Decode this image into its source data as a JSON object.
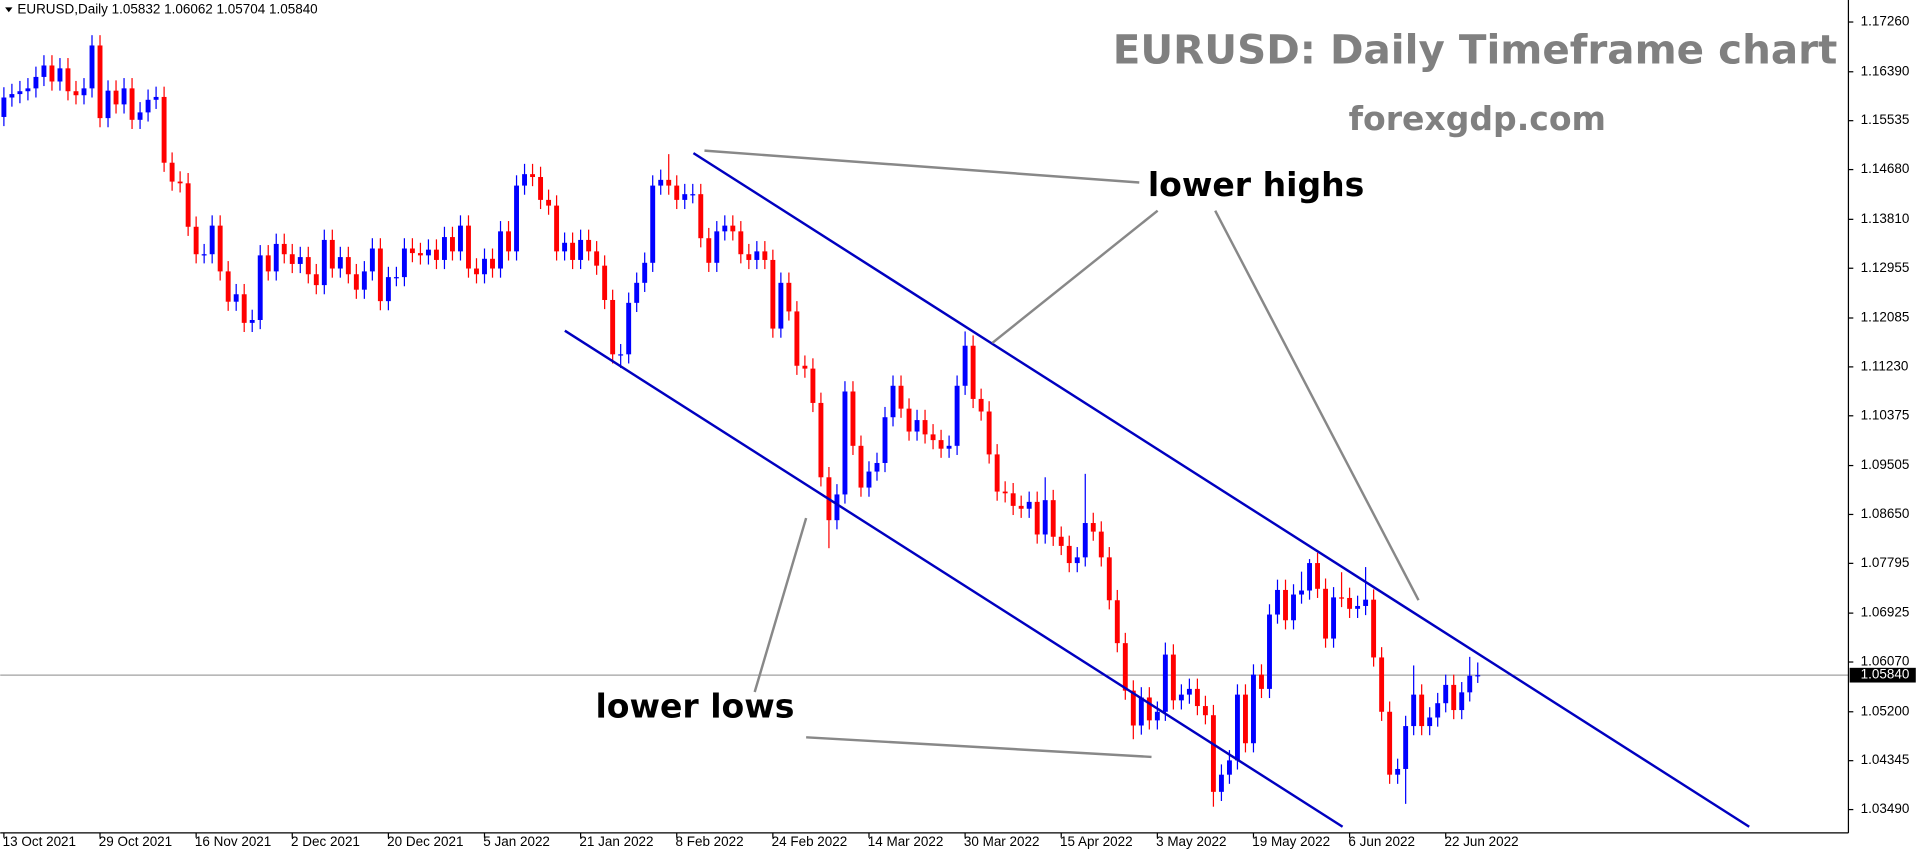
{
  "chart_data": {
    "type": "candlestick",
    "title": "EURUSD: Daily Timeframe chart",
    "subtitle": "forexgdp.com",
    "header": {
      "symbol": "EURUSD,Daily",
      "ohlc": [
        "1.05832",
        "1.06062",
        "1.05704",
        "1.05840"
      ]
    },
    "annotations": [
      "lower highs",
      "lower lows"
    ],
    "up_color": "#0000ff",
    "down_color": "#ff0000",
    "ylim": [
      1.03083,
      1.17645
    ],
    "yticks": [
      {
        "value": 1.1726,
        "label": "1.17260"
      },
      {
        "value": 1.1639,
        "label": "1.16390"
      },
      1.15535,
      {
        "value": 1.1468,
        "label": "1.14680"
      },
      {
        "value": 1.1381,
        "label": "1.13810"
      },
      1.12955,
      1.12085,
      {
        "value": 1.1123,
        "label": "1.11230"
      },
      1.10375,
      1.09505,
      {
        "value": 1.0865,
        "label": "1.08650"
      },
      1.07795,
      1.06925,
      {
        "value": 1.0607,
        "label": "1.06070"
      },
      {
        "value": 1.052,
        "label": "1.05200"
      },
      1.04345,
      {
        "value": 1.0349,
        "label": "1.03490"
      }
    ],
    "current_price": {
      "value": 1.0584,
      "label": "1.05840"
    },
    "categories": [
      "13 Oct 2021",
      null,
      null,
      null,
      null,
      null,
      null,
      null,
      null,
      null,
      null,
      null,
      "29 Oct 2021",
      null,
      null,
      null,
      null,
      null,
      null,
      null,
      null,
      null,
      null,
      null,
      "16 Nov 2021",
      null,
      null,
      null,
      null,
      null,
      null,
      null,
      null,
      null,
      null,
      null,
      "2 Dec 2021",
      null,
      null,
      null,
      null,
      null,
      null,
      null,
      null,
      null,
      null,
      null,
      "20 Dec 2021",
      null,
      null,
      null,
      null,
      null,
      null,
      null,
      null,
      null,
      null,
      null,
      "5 Jan 2022",
      null,
      null,
      null,
      null,
      null,
      null,
      null,
      null,
      null,
      null,
      null,
      "21 Jan 2022",
      null,
      null,
      null,
      null,
      null,
      null,
      null,
      null,
      null,
      null,
      null,
      "8 Feb 2022",
      null,
      null,
      null,
      null,
      null,
      null,
      null,
      null,
      null,
      null,
      null,
      "24 Feb 2022",
      null,
      null,
      null,
      null,
      null,
      null,
      null,
      null,
      null,
      null,
      null,
      "14 Mar 2022",
      null,
      null,
      null,
      null,
      null,
      null,
      null,
      null,
      null,
      null,
      null,
      "30 Mar 2022",
      null,
      null,
      null,
      null,
      null,
      null,
      null,
      null,
      null,
      null,
      null,
      "15 Apr 2022",
      null,
      null,
      null,
      null,
      null,
      null,
      null,
      null,
      null,
      null,
      null,
      "3 May 2022",
      null,
      null,
      null,
      null,
      null,
      null,
      null,
      null,
      null,
      null,
      null,
      "19 May 2022",
      null,
      null,
      null,
      null,
      null,
      null,
      null,
      null,
      null,
      null,
      null,
      "6 Jun 2022",
      null,
      null,
      null,
      null,
      null,
      null,
      null,
      null,
      null,
      null,
      null,
      "22 Jun 2022",
      null,
      null,
      null,
      null
    ],
    "open": [
      1.156,
      1.1594,
      1.16,
      1.1605,
      1.161,
      1.163,
      1.165,
      1.1622,
      1.1645,
      1.1605,
      1.1598,
      1.161,
      1.1685,
      1.1558,
      1.1606,
      1.1582,
      1.161,
      1.1555,
      1.1568,
      1.159,
      1.1595,
      1.148,
      1.1447,
      1.1444,
      1.1368,
      1.132,
      1.132,
      1.137,
      1.129,
      1.1237,
      1.125,
      1.12,
      1.1205,
      1.1318,
      1.129,
      1.1338,
      1.132,
      1.1303,
      1.1315,
      1.1285,
      1.1266,
      1.1345,
      1.1295,
      1.1315,
      1.1285,
      1.1258,
      1.129,
      1.133,
      1.1238,
      1.128,
      1.128,
      1.133,
      1.1322,
      1.1318,
      1.1328,
      1.131,
      1.135,
      1.1325,
      1.137,
      1.1295,
      1.1285,
      1.1312,
      1.1295,
      1.136,
      1.1325,
      1.144,
      1.146,
      1.1455,
      1.1415,
      1.1405,
      1.1325,
      1.134,
      1.131,
      1.1345,
      1.1325,
      1.13,
      1.124,
      1.1145,
      1.1145,
      1.1235,
      1.127,
      1.1305,
      1.144,
      1.145,
      1.144,
      1.1415,
      1.1425,
      1.1425,
      1.1348,
      1.1305,
      1.136,
      1.137,
      1.136,
      1.132,
      1.131,
      1.1325,
      1.131,
      1.119,
      1.127,
      1.122,
      1.1125,
      1.112,
      1.106,
      1.093,
      1.0855,
      1.09,
      1.108,
      1.0985,
      1.0912,
      1.094,
      1.0955,
      1.1035,
      1.109,
      1.105,
      1.101,
      1.103,
      1.1005,
      1.0995,
      1.098,
      1.0985,
      1.109,
      1.116,
      1.1067,
      1.1045,
      1.097,
      1.0905,
      1.0902,
      1.088,
      1.0875,
      1.0887,
      1.083,
      1.089,
      1.0826,
      1.081,
      1.078,
      1.079,
      1.085,
      1.0835,
      1.079,
      1.0715,
      1.064,
      1.0557,
      1.0496,
      1.0545,
      1.0505,
      1.052,
      1.062,
      1.054,
      1.055,
      1.056,
      1.053,
      1.0514,
      1.038,
      1.041,
      1.0435,
      1.055,
      1.0465,
      1.0585,
      1.056,
      1.069,
      1.0733,
      1.068,
      1.0725,
      1.0732,
      1.078,
      1.0735,
      1.0648,
      1.072,
      1.0719,
      1.07,
      1.0705,
      1.0716,
      1.0615,
      1.052,
      1.041,
      1.042,
      1.0495,
      1.055,
      1.0495,
      1.051,
      1.0535,
      1.0567,
      1.0523,
      1.0554,
      1.05832
    ],
    "high": [
      1.1612,
      1.1618,
      1.1623,
      1.1628,
      1.1648,
      1.1668,
      1.1668,
      1.1663,
      1.1663,
      1.1623,
      1.1628,
      1.1703,
      1.1703,
      1.1624,
      1.1624,
      1.1628,
      1.1628,
      1.1586,
      1.1608,
      1.1613,
      1.1613,
      1.1498,
      1.1465,
      1.1462,
      1.1386,
      1.1338,
      1.1388,
      1.1388,
      1.1308,
      1.1268,
      1.1268,
      1.1223,
      1.1336,
      1.1336,
      1.1356,
      1.1356,
      1.1338,
      1.1333,
      1.1333,
      1.1303,
      1.1363,
      1.1363,
      1.1333,
      1.1333,
      1.1303,
      1.1308,
      1.1348,
      1.1348,
      1.1298,
      1.1298,
      1.1348,
      1.1348,
      1.134,
      1.1346,
      1.1346,
      1.1368,
      1.1368,
      1.1388,
      1.1388,
      1.1313,
      1.133,
      1.133,
      1.1378,
      1.1378,
      1.1458,
      1.1478,
      1.1478,
      1.1473,
      1.1433,
      1.1423,
      1.1358,
      1.1358,
      1.1363,
      1.1363,
      1.1343,
      1.1318,
      1.1258,
      1.1163,
      1.1253,
      1.1288,
      1.1323,
      1.1458,
      1.1468,
      1.1495,
      1.1458,
      1.1443,
      1.1443,
      1.1443,
      1.1366,
      1.1378,
      1.1388,
      1.1388,
      1.1378,
      1.1338,
      1.1343,
      1.1343,
      1.1328,
      1.1288,
      1.1288,
      1.1238,
      1.1143,
      1.1138,
      1.1078,
      1.0948,
      1.0918,
      1.1098,
      1.1098,
      1.1003,
      1.0958,
      1.0973,
      1.1053,
      1.1108,
      1.1108,
      1.1068,
      1.1048,
      1.1048,
      1.1023,
      1.1013,
      1.1003,
      1.1108,
      1.1185,
      1.1178,
      1.1085,
      1.1063,
      1.0988,
      1.0923,
      1.092,
      1.0898,
      1.0905,
      1.0905,
      1.093,
      1.0908,
      1.0844,
      1.0828,
      1.0808,
      1.0936,
      1.0868,
      1.0853,
      1.0808,
      1.0733,
      1.0658,
      1.0575,
      1.0563,
      1.0563,
      1.0538,
      1.0641,
      1.0638,
      1.0568,
      1.0578,
      1.0578,
      1.0548,
      1.0532,
      1.0428,
      1.0453,
      1.0568,
      1.0568,
      1.0603,
      1.0603,
      1.0708,
      1.0751,
      1.0751,
      1.0743,
      1.0765,
      1.0787,
      1.0798,
      1.0753,
      1.0738,
      1.0764,
      1.0737,
      1.0723,
      1.0773,
      1.0734,
      1.0633,
      1.0538,
      1.0438,
      1.0513,
      1.0601,
      1.0568,
      1.0528,
      1.0553,
      1.0585,
      1.0585,
      1.0572,
      1.0616,
      1.06062
    ],
    "low": [
      1.1544,
      1.1578,
      1.1584,
      1.1589,
      1.1594,
      1.1614,
      1.1606,
      1.1606,
      1.1589,
      1.1582,
      1.1582,
      1.1594,
      1.1542,
      1.1542,
      1.1566,
      1.1566,
      1.1539,
      1.1539,
      1.1552,
      1.1574,
      1.1464,
      1.1431,
      1.1428,
      1.1352,
      1.1304,
      1.1304,
      1.1304,
      1.1274,
      1.1221,
      1.1221,
      1.1184,
      1.1184,
      1.1189,
      1.1274,
      1.1274,
      1.1304,
      1.1287,
      1.1287,
      1.1269,
      1.125,
      1.125,
      1.1279,
      1.1279,
      1.1269,
      1.1242,
      1.1242,
      1.1274,
      1.1222,
      1.1222,
      1.1264,
      1.1264,
      1.1306,
      1.1302,
      1.1302,
      1.1294,
      1.1294,
      1.1309,
      1.1309,
      1.1279,
      1.1269,
      1.1269,
      1.1279,
      1.1279,
      1.1309,
      1.1309,
      1.1424,
      1.1439,
      1.1399,
      1.1389,
      1.1309,
      1.1309,
      1.1294,
      1.1294,
      1.1309,
      1.1284,
      1.1224,
      1.1129,
      1.1121,
      1.1129,
      1.1219,
      1.1254,
      1.1289,
      1.1424,
      1.1424,
      1.1399,
      1.1399,
      1.1409,
      1.1332,
      1.1289,
      1.1289,
      1.1344,
      1.1344,
      1.1304,
      1.1294,
      1.1294,
      1.1294,
      1.1174,
      1.1174,
      1.1204,
      1.1109,
      1.1104,
      1.1044,
      1.0914,
      1.0806,
      1.0839,
      1.0884,
      1.0969,
      1.0896,
      1.0896,
      1.0924,
      1.0939,
      1.1019,
      1.1034,
      1.0994,
      1.0994,
      1.0989,
      1.0979,
      1.0964,
      1.0964,
      1.0969,
      1.1074,
      1.1051,
      1.1029,
      1.0954,
      1.0889,
      1.0886,
      1.0864,
      1.0859,
      1.0859,
      1.0814,
      1.0814,
      1.081,
      1.0794,
      1.0764,
      1.0764,
      1.0774,
      1.0819,
      1.0774,
      1.0699,
      1.0624,
      1.0541,
      1.0472,
      1.048,
      1.0489,
      1.0489,
      1.0504,
      1.0524,
      1.0524,
      1.0534,
      1.0514,
      1.0498,
      1.0354,
      1.0364,
      1.0394,
      1.0419,
      1.0449,
      1.0449,
      1.0544,
      1.0544,
      1.0674,
      1.0664,
      1.0664,
      1.0709,
      1.0716,
      1.0719,
      1.0632,
      1.0632,
      1.0703,
      1.0684,
      1.0684,
      1.0689,
      1.0599,
      1.0504,
      1.0394,
      1.0394,
      1.0359,
      1.0479,
      1.0479,
      1.0479,
      1.0494,
      1.0519,
      1.0507,
      1.0507,
      1.0538,
      1.05704
    ],
    "close": [
      1.1594,
      1.16,
      1.1605,
      1.161,
      1.163,
      1.165,
      1.1622,
      1.1645,
      1.1605,
      1.1598,
      1.161,
      1.1685,
      1.1558,
      1.1606,
      1.1582,
      1.161,
      1.1555,
      1.1568,
      1.159,
      1.1595,
      1.148,
      1.1447,
      1.1444,
      1.1368,
      1.132,
      1.132,
      1.137,
      1.129,
      1.1237,
      1.125,
      1.12,
      1.1205,
      1.1318,
      1.129,
      1.1338,
      1.132,
      1.1303,
      1.1315,
      1.1285,
      1.1266,
      1.1345,
      1.1295,
      1.1315,
      1.1285,
      1.1258,
      1.129,
      1.133,
      1.1238,
      1.128,
      1.128,
      1.133,
      1.1322,
      1.1318,
      1.1328,
      1.131,
      1.135,
      1.1325,
      1.137,
      1.1295,
      1.1285,
      1.1312,
      1.1295,
      1.136,
      1.1325,
      1.144,
      1.146,
      1.1455,
      1.1415,
      1.1405,
      1.1325,
      1.134,
      1.131,
      1.1345,
      1.1325,
      1.13,
      1.124,
      1.1145,
      1.1145,
      1.1235,
      1.127,
      1.1305,
      1.144,
      1.145,
      1.144,
      1.1415,
      1.1425,
      1.1425,
      1.1348,
      1.1305,
      1.136,
      1.137,
      1.136,
      1.132,
      1.131,
      1.1325,
      1.131,
      1.119,
      1.127,
      1.122,
      1.1125,
      1.112,
      1.106,
      1.093,
      1.0855,
      1.09,
      1.108,
      1.0985,
      1.0912,
      1.094,
      1.0955,
      1.1035,
      1.109,
      1.105,
      1.101,
      1.103,
      1.1005,
      1.0995,
      1.098,
      1.0985,
      1.109,
      1.116,
      1.1067,
      1.1045,
      1.097,
      1.0905,
      1.0902,
      1.088,
      1.0875,
      1.0887,
      1.083,
      1.089,
      1.0826,
      1.081,
      1.078,
      1.079,
      1.085,
      1.0835,
      1.079,
      1.0715,
      1.064,
      1.0557,
      1.0496,
      1.0545,
      1.0505,
      1.052,
      1.062,
      1.054,
      1.055,
      1.056,
      1.053,
      1.0514,
      1.038,
      1.041,
      1.0435,
      1.055,
      1.0465,
      1.0585,
      1.056,
      1.069,
      1.0733,
      1.068,
      1.0725,
      1.0732,
      1.078,
      1.0735,
      1.0648,
      1.072,
      1.0719,
      1.07,
      1.0705,
      1.0716,
      1.0615,
      1.052,
      1.041,
      1.042,
      1.0495,
      1.055,
      1.0495,
      1.051,
      1.0535,
      1.0567,
      1.0523,
      1.0554,
      1.0583,
      1.0584
    ]
  }
}
